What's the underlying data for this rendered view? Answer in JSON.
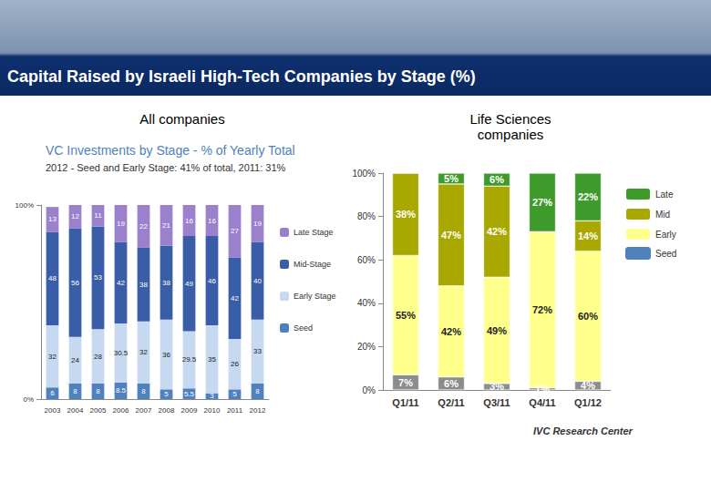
{
  "title": "Capital Raised by Israeli High-Tech Companies by Stage (%)",
  "chart_data": [
    {
      "type": "bar",
      "heading": "All companies",
      "title": "VC Investments by Stage - % of Yearly Total",
      "subtitle": "2012 - Seed and Early Stage: 41% of total, 2011: 31%",
      "categories": [
        "2003",
        "2004",
        "2005",
        "2006",
        "2007",
        "2008",
        "2009",
        "2010",
        "2011",
        "2012"
      ],
      "series": [
        {
          "name": "Seed",
          "color": "#4f81bd",
          "values": [
            6,
            8,
            8,
            8.5,
            8,
            5,
            5.5,
            3,
            5,
            8
          ]
        },
        {
          "name": "Early Stage",
          "color": "#c6d9f0",
          "values": [
            32,
            24,
            28,
            30.5,
            32,
            36,
            29.5,
            35,
            26,
            33
          ]
        },
        {
          "name": "Mid-Stage",
          "color": "#3a5da8",
          "values": [
            48,
            56,
            53,
            42,
            38,
            38,
            49,
            46,
            42,
            40
          ]
        },
        {
          "name": "Late Stage",
          "color": "#9b80cc",
          "values": [
            13,
            12,
            11,
            19,
            22,
            21,
            16,
            16,
            27,
            19
          ]
        }
      ],
      "ylim": [
        0,
        100
      ],
      "yticks": [
        {
          "value": 0,
          "label": "0%"
        },
        {
          "value": 100,
          "label": "100%"
        }
      ],
      "stacked": true,
      "data_labels": true,
      "grid": false,
      "legend": "right"
    },
    {
      "type": "bar",
      "heading": "Life Sciences companies",
      "categories": [
        "Q1/11",
        "Q2/11",
        "Q3/11",
        "Q4/11",
        "Q1/12"
      ],
      "series": [
        {
          "name": "Seed",
          "color": "#8c8c8c",
          "values": [
            7,
            6,
            3,
            1,
            4
          ],
          "value_labels": [
            "7%",
            "6%",
            "3%",
            "1%",
            "4%"
          ]
        },
        {
          "name": "Early",
          "color": "#ffff8c",
          "values": [
            55,
            42,
            49,
            72,
            60
          ],
          "value_labels": [
            "55%",
            "42%",
            "49%",
            "72%",
            "60%"
          ]
        },
        {
          "name": "Mid",
          "color": "#a8a800",
          "values": [
            38,
            47,
            42,
            0,
            14
          ],
          "value_labels": [
            "38%",
            "47%",
            "42%",
            null,
            "14%"
          ]
        },
        {
          "name": "Late",
          "color": "#3f9a2c",
          "values": [
            0,
            5,
            6,
            27,
            22
          ],
          "value_labels": [
            null,
            "5%",
            "6%",
            "27%",
            "22%"
          ]
        }
      ],
      "ylim": [
        0,
        100
      ],
      "yticks": [
        {
          "value": 0,
          "label": "0%"
        },
        {
          "value": 20,
          "label": "20%"
        },
        {
          "value": 40,
          "label": "40%"
        },
        {
          "value": 60,
          "label": "60%"
        },
        {
          "value": 80,
          "label": "80%"
        },
        {
          "value": 100,
          "label": "100%"
        }
      ],
      "stacked": true,
      "data_labels": true,
      "grid": false,
      "legend": "right",
      "annotations": [
        "IVC Research Center"
      ]
    }
  ]
}
